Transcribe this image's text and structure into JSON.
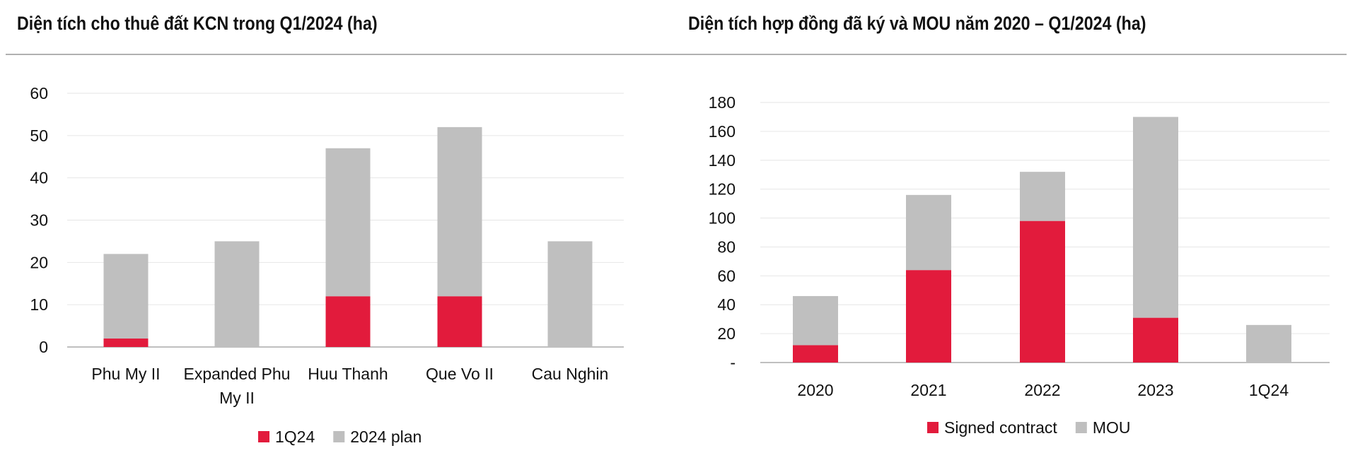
{
  "colors": {
    "red": "#e21b3c",
    "gray": "#bfbfbf",
    "grid": "#e6e6e6",
    "axis": "#bfbfbf"
  },
  "chart_data": [
    {
      "type": "bar",
      "stacked": true,
      "title": "Diện tích cho thuê đất KCN trong Q1/2024 (ha)",
      "categories": [
        [
          "Phu My II"
        ],
        [
          "Expanded Phu",
          "My II"
        ],
        [
          "Huu Thanh"
        ],
        [
          "Que Vo  II"
        ],
        [
          "Cau Nghin"
        ]
      ],
      "series": [
        {
          "name": "1Q24",
          "color": "#e21b3c",
          "values": [
            2,
            0,
            12,
            12,
            0
          ]
        },
        {
          "name": "2024 plan",
          "color": "#bfbfbf",
          "values": [
            20,
            25,
            35,
            40,
            25
          ]
        }
      ],
      "ylim": [
        0,
        60
      ],
      "yticks": [
        0,
        10,
        20,
        30,
        40,
        50,
        60
      ],
      "ytick_labels": [
        "0",
        "10",
        "20",
        "30",
        "40",
        "50",
        "60"
      ],
      "grid": true,
      "legend": "bottom"
    },
    {
      "type": "bar",
      "stacked": true,
      "title": "Diện tích hợp đồng đã ký và MOU năm 2020 – Q1/2024 (ha)",
      "categories": [
        [
          "2020"
        ],
        [
          "2021"
        ],
        [
          "2022"
        ],
        [
          "2023"
        ],
        [
          "1Q24"
        ]
      ],
      "series": [
        {
          "name": "Signed contract",
          "color": "#e21b3c",
          "values": [
            12,
            64,
            98,
            31,
            0
          ]
        },
        {
          "name": "MOU",
          "color": "#bfbfbf",
          "values": [
            34,
            52,
            34,
            139,
            26
          ]
        }
      ],
      "ylim": [
        0,
        180
      ],
      "yticks": [
        0,
        20,
        40,
        60,
        80,
        100,
        120,
        140,
        160,
        180
      ],
      "ytick_labels": [
        "-",
        "20",
        "40",
        "60",
        "80",
        "100",
        "120",
        "140",
        "160",
        "180"
      ],
      "grid": true,
      "legend": "bottom"
    }
  ]
}
